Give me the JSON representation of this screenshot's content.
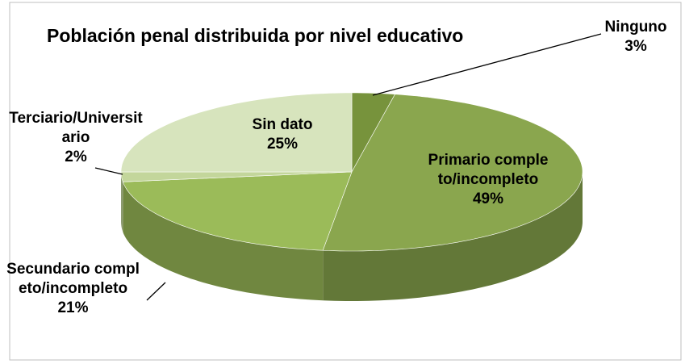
{
  "chart_data": {
    "type": "pie3d",
    "title": "Población penal distribuida por nivel educativo",
    "categories": [
      "Ninguno",
      "Primario completo/incompleto",
      "Secundario completo/incompleto",
      "Terciario/Universitario",
      "Sin dato"
    ],
    "values": [
      3,
      49,
      21,
      2,
      25
    ],
    "value_labels": [
      "3%",
      "49%",
      "21%",
      "2%",
      "25%"
    ],
    "colors": [
      "#77933c",
      "#8aa64e",
      "#9bbb59",
      "#c3d69b",
      "#d7e4bd"
    ]
  }
}
